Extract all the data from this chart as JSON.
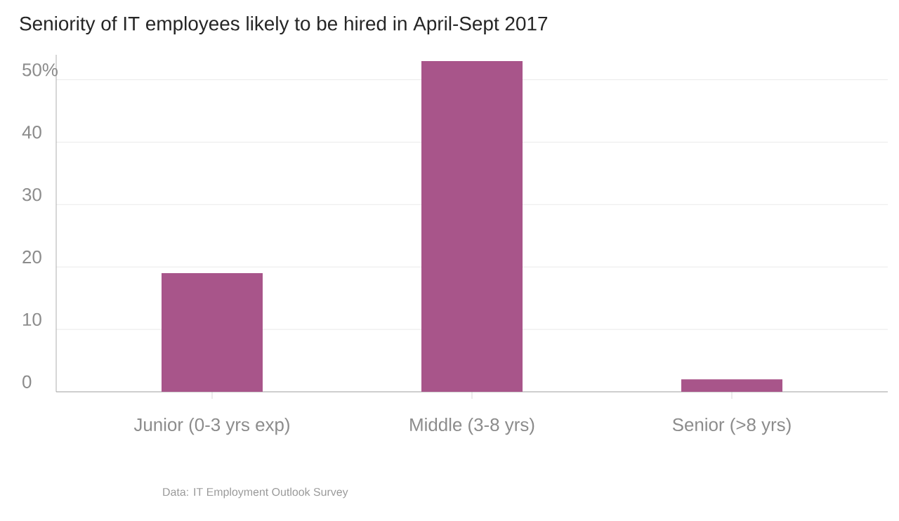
{
  "chart_data": {
    "type": "bar",
    "title": "Seniority of IT employees likely to be hired in April-Sept 2017",
    "categories": [
      "Junior (0-3 yrs exp)",
      "Middle (3-8 yrs)",
      "Senior (>8 yrs)"
    ],
    "values": [
      19,
      53,
      2
    ],
    "color": "#a8558a",
    "ylim": [
      0,
      54
    ],
    "yticks": [
      0,
      10,
      20,
      30,
      40,
      {
        "value": 50,
        "label": "50%"
      }
    ],
    "grid": "y",
    "annotations": [
      "Data: IT Employment Outlook Survey"
    ]
  }
}
